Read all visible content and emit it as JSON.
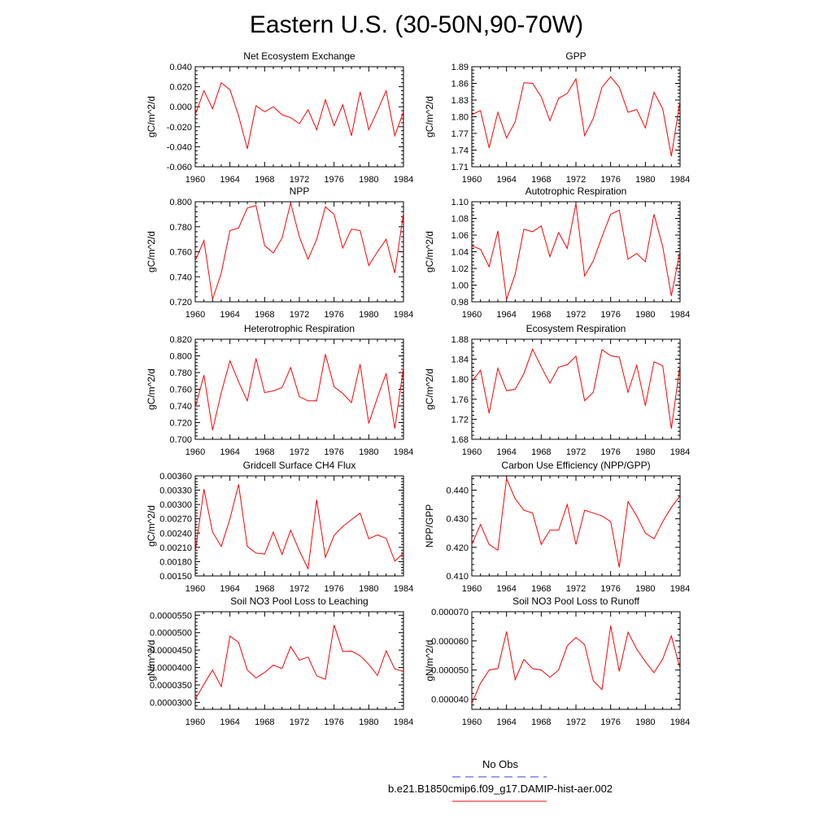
{
  "title": "Eastern U.S. (30-50N,90-70W)",
  "colors": {
    "model": "#ff0000",
    "obs": "#3a3adf",
    "axis": "#000000"
  },
  "legend": {
    "obs_label": "No Obs",
    "model_label": "b.e21.B1850cmip6.f09_g17.DAMIP-hist-aer.002"
  },
  "chart_data": [
    {
      "type": "line",
      "title": "Net Ecosystem Exchange",
      "ylabel": "gC/m^2/d",
      "xlim": [
        1960,
        1984
      ],
      "xticks": [
        "1960",
        "1964",
        "1968",
        "1972",
        "1976",
        "1980",
        "1984"
      ],
      "ylim": [
        -0.06,
        0.04
      ],
      "yticks": [
        "-0.060",
        "-0.040",
        "-0.020",
        "0.000",
        "0.020",
        "0.040"
      ],
      "x": [
        1960,
        1961,
        1962,
        1963,
        1964,
        1965,
        1966,
        1967,
        1968,
        1969,
        1970,
        1971,
        1972,
        1973,
        1974,
        1975,
        1976,
        1977,
        1978,
        1979,
        1980,
        1981,
        1982,
        1983,
        1984
      ],
      "series": [
        {
          "values": [
            -0.008,
            0.016,
            -0.002,
            0.024,
            0.017,
            -0.009,
            -0.042,
            0.001,
            -0.005,
            0.0,
            -0.008,
            -0.011,
            -0.017,
            -0.003,
            -0.023,
            0.007,
            -0.019,
            0.002,
            -0.029,
            0.015,
            -0.023,
            -0.004,
            0.016,
            -0.029,
            -0.005
          ]
        }
      ]
    },
    {
      "type": "line",
      "title": "GPP",
      "ylabel": "gC/m^2/d",
      "xlim": [
        1960,
        1984
      ],
      "xticks": [
        "1960",
        "1964",
        "1968",
        "1972",
        "1976",
        "1980",
        "1984"
      ],
      "ylim": [
        1.71,
        1.89
      ],
      "yticks": [
        "1.71",
        "1.74",
        "1.77",
        "1.80",
        "1.83",
        "1.86",
        "1.89"
      ],
      "x": [
        1960,
        1961,
        1962,
        1963,
        1964,
        1965,
        1966,
        1967,
        1968,
        1969,
        1970,
        1971,
        1972,
        1973,
        1974,
        1975,
        1976,
        1977,
        1978,
        1979,
        1980,
        1981,
        1982,
        1983,
        1984
      ],
      "series": [
        {
          "values": [
            1.804,
            1.811,
            1.744,
            1.808,
            1.762,
            1.791,
            1.861,
            1.86,
            1.836,
            1.793,
            1.833,
            1.842,
            1.868,
            1.766,
            1.797,
            1.853,
            1.872,
            1.853,
            1.808,
            1.813,
            1.78,
            1.844,
            1.814,
            1.729,
            1.829
          ]
        }
      ]
    },
    {
      "type": "line",
      "title": "NPP",
      "ylabel": "gC/m^2/d",
      "xlim": [
        1960,
        1984
      ],
      "xticks": [
        "1960",
        "1964",
        "1968",
        "1972",
        "1976",
        "1980",
        "1984"
      ],
      "ylim": [
        0.72,
        0.8
      ],
      "yticks": [
        "0.720",
        "0.740",
        "0.760",
        "0.780",
        "0.800"
      ],
      "x": [
        1960,
        1961,
        1962,
        1963,
        1964,
        1965,
        1966,
        1967,
        1968,
        1969,
        1970,
        1971,
        1972,
        1973,
        1974,
        1975,
        1976,
        1977,
        1978,
        1979,
        1980,
        1981,
        1982,
        1983,
        1984
      ],
      "series": [
        {
          "values": [
            0.753,
            0.769,
            0.722,
            0.743,
            0.777,
            0.779,
            0.795,
            0.797,
            0.765,
            0.759,
            0.771,
            0.799,
            0.772,
            0.754,
            0.77,
            0.796,
            0.79,
            0.763,
            0.778,
            0.777,
            0.749,
            0.76,
            0.77,
            0.743,
            0.791
          ]
        }
      ]
    },
    {
      "type": "line",
      "title": "Autotrophic Respiration",
      "ylabel": "gC/m^2/d",
      "xlim": [
        1960,
        1984
      ],
      "xticks": [
        "1960",
        "1964",
        "1968",
        "1972",
        "1976",
        "1980",
        "1984"
      ],
      "ylim": [
        0.98,
        1.1
      ],
      "yticks": [
        "0.98",
        "1.00",
        "1.02",
        "1.04",
        "1.06",
        "1.08",
        "1.10"
      ],
      "x": [
        1960,
        1961,
        1962,
        1963,
        1964,
        1965,
        1966,
        1967,
        1968,
        1969,
        1970,
        1971,
        1972,
        1973,
        1974,
        1975,
        1976,
        1977,
        1978,
        1979,
        1980,
        1981,
        1982,
        1983,
        1984
      ],
      "series": [
        {
          "values": [
            1.047,
            1.043,
            1.022,
            1.065,
            0.983,
            1.013,
            1.067,
            1.064,
            1.071,
            1.034,
            1.063,
            1.044,
            1.098,
            1.011,
            1.029,
            1.058,
            1.085,
            1.09,
            1.031,
            1.038,
            1.028,
            1.085,
            1.046,
            0.987,
            1.041
          ]
        }
      ]
    },
    {
      "type": "line",
      "title": "Heterotrophic Respiration",
      "ylabel": "gC/m^2/d",
      "xlim": [
        1960,
        1984
      ],
      "xticks": [
        "1960",
        "1964",
        "1968",
        "1972",
        "1976",
        "1980",
        "1984"
      ],
      "ylim": [
        0.7,
        0.82
      ],
      "yticks": [
        "0.700",
        "0.720",
        "0.740",
        "0.760",
        "0.780",
        "0.800",
        "0.820"
      ],
      "x": [
        1960,
        1961,
        1962,
        1963,
        1964,
        1965,
        1966,
        1967,
        1968,
        1969,
        1970,
        1971,
        1972,
        1973,
        1974,
        1975,
        1976,
        1977,
        1978,
        1979,
        1980,
        1981,
        1982,
        1983,
        1984
      ],
      "series": [
        {
          "values": [
            0.738,
            0.777,
            0.711,
            0.756,
            0.794,
            0.769,
            0.746,
            0.797,
            0.756,
            0.758,
            0.762,
            0.786,
            0.751,
            0.746,
            0.746,
            0.802,
            0.763,
            0.755,
            0.744,
            0.79,
            0.719,
            0.75,
            0.779,
            0.713,
            0.786
          ]
        }
      ]
    },
    {
      "type": "line",
      "title": "Ecosystem Respiration",
      "ylabel": "gC/m^2/d",
      "xlim": [
        1960,
        1984
      ],
      "xticks": [
        "1960",
        "1964",
        "1968",
        "1972",
        "1976",
        "1980",
        "1984"
      ],
      "ylim": [
        1.68,
        1.88
      ],
      "yticks": [
        "1.68",
        "1.72",
        "1.76",
        "1.80",
        "1.84",
        "1.88"
      ],
      "x": [
        1960,
        1961,
        1962,
        1963,
        1964,
        1965,
        1966,
        1967,
        1968,
        1969,
        1970,
        1971,
        1972,
        1973,
        1974,
        1975,
        1976,
        1977,
        1978,
        1979,
        1980,
        1981,
        1982,
        1983,
        1984
      ],
      "series": [
        {
          "values": [
            1.795,
            1.818,
            1.732,
            1.822,
            1.777,
            1.78,
            1.811,
            1.86,
            1.825,
            1.792,
            1.824,
            1.829,
            1.846,
            1.757,
            1.774,
            1.859,
            1.847,
            1.844,
            1.774,
            1.828,
            1.747,
            1.835,
            1.827,
            1.701,
            1.829
          ]
        }
      ]
    },
    {
      "type": "line",
      "title": "Gridcell Surface CH4 Flux",
      "ylabel": "gC/m^2/d",
      "xlim": [
        1960,
        1984
      ],
      "xticks": [
        "1960",
        "1964",
        "1968",
        "1972",
        "1976",
        "1980",
        "1984"
      ],
      "ylim": [
        0.0015,
        0.0036
      ],
      "yticks": [
        "0.00150",
        "0.00180",
        "0.00210",
        "0.00240",
        "0.00270",
        "0.00300",
        "0.00330",
        "0.00360"
      ],
      "x": [
        1960,
        1961,
        1962,
        1963,
        1964,
        1965,
        1966,
        1967,
        1968,
        1969,
        1970,
        1971,
        1972,
        1973,
        1974,
        1975,
        1976,
        1977,
        1978,
        1979,
        1980,
        1981,
        1982,
        1983,
        1984
      ],
      "series": [
        {
          "values": [
            0.002,
            0.00332,
            0.00242,
            0.00212,
            0.0027,
            0.00342,
            0.00212,
            0.00198,
            0.00196,
            0.00242,
            0.00195,
            0.00246,
            0.00203,
            0.00165,
            0.0031,
            0.00189,
            0.00235,
            0.00254,
            0.00268,
            0.00282,
            0.00228,
            0.00236,
            0.00229,
            0.00181,
            0.00198
          ]
        }
      ]
    },
    {
      "type": "line",
      "title": "Carbon Use Efficiency (NPP/GPP)",
      "ylabel": "NPP/GPP",
      "xlim": [
        1960,
        1984
      ],
      "xticks": [
        "1960",
        "1964",
        "1968",
        "1972",
        "1976",
        "1980",
        "1984"
      ],
      "ylim": [
        0.41,
        0.445
      ],
      "yticks": [
        "0.410",
        "0.420",
        "0.430",
        "0.440"
      ],
      "x": [
        1960,
        1961,
        1962,
        1963,
        1964,
        1965,
        1966,
        1967,
        1968,
        1969,
        1970,
        1971,
        1972,
        1973,
        1974,
        1975,
        1976,
        1977,
        1978,
        1979,
        1980,
        1981,
        1982,
        1983,
        1984
      ],
      "series": [
        {
          "values": [
            0.421,
            0.428,
            0.421,
            0.419,
            0.444,
            0.437,
            0.433,
            0.432,
            0.421,
            0.426,
            0.426,
            0.435,
            0.421,
            0.433,
            0.432,
            0.431,
            0.429,
            0.413,
            0.436,
            0.431,
            0.425,
            0.423,
            0.429,
            0.434,
            0.438
          ]
        }
      ]
    },
    {
      "type": "line",
      "title": "Soil NO3 Pool Loss to Leaching",
      "ylabel": "gN/m^2/d",
      "xlim": [
        1960,
        1984
      ],
      "xticks": [
        "1960",
        "1964",
        "1968",
        "1972",
        "1976",
        "1980",
        "1984"
      ],
      "ylim": [
        2.8e-05,
        5.6e-05
      ],
      "yticks": [
        "0.0000300",
        "0.0000350",
        "0.0000400",
        "0.0000450",
        "0.0000500",
        "0.0000550"
      ],
      "x": [
        1960,
        1961,
        1962,
        1963,
        1964,
        1965,
        1966,
        1967,
        1968,
        1969,
        1970,
        1971,
        1972,
        1973,
        1974,
        1975,
        1976,
        1977,
        1978,
        1979,
        1980,
        1981,
        1982,
        1983,
        1984
      ],
      "series": [
        {
          "values": [
            3.09e-05,
            3.52e-05,
            3.93e-05,
            3.45e-05,
            4.9e-05,
            4.72e-05,
            3.93e-05,
            3.7e-05,
            3.86e-05,
            4.07e-05,
            3.97e-05,
            4.6e-05,
            4.21e-05,
            4.3e-05,
            3.76e-05,
            3.66e-05,
            5.22e-05,
            4.46e-05,
            4.47e-05,
            4.34e-05,
            4.09e-05,
            3.77e-05,
            4.48e-05,
            3.96e-05,
            3.89e-05
          ]
        }
      ]
    },
    {
      "type": "line",
      "title": "Soil NO3 Pool Loss to Runoff",
      "ylabel": "gN/m^2/d",
      "xlim": [
        1960,
        1984
      ],
      "xticks": [
        "1960",
        "1964",
        "1968",
        "1972",
        "1976",
        "1980",
        "1984"
      ],
      "ylim": [
        3.65e-05,
        7e-05
      ],
      "yticks": [
        "0.000040",
        "0.000050",
        "0.000060",
        "0.000070"
      ],
      "x": [
        1960,
        1961,
        1962,
        1963,
        1964,
        1965,
        1966,
        1967,
        1968,
        1969,
        1970,
        1971,
        1972,
        1973,
        1974,
        1975,
        1976,
        1977,
        1978,
        1979,
        1980,
        1981,
        1982,
        1983,
        1984
      ],
      "series": [
        {
          "values": [
            3.85e-05,
            4.55e-05,
            5e-05,
            5.05e-05,
            6.32e-05,
            4.67e-05,
            5.36e-05,
            5.05e-05,
            5e-05,
            4.75e-05,
            5e-05,
            5.83e-05,
            6.12e-05,
            5.87e-05,
            4.63e-05,
            4.33e-05,
            6.52e-05,
            4.95e-05,
            6.3e-05,
            5.72e-05,
            5.29e-05,
            4.91e-05,
            5.38e-05,
            6.17e-05,
            5.05e-05
          ]
        }
      ]
    }
  ]
}
